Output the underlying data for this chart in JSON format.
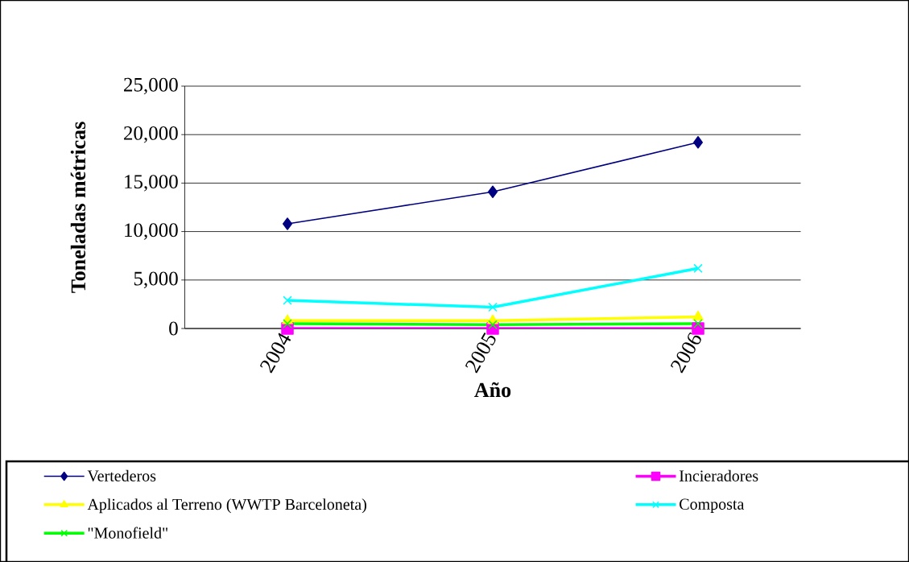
{
  "chart_data": {
    "type": "line",
    "xlabel": "Año",
    "ylabel": "Toneladas métricas",
    "categories": [
      "2004",
      "2005",
      "2006"
    ],
    "series": [
      {
        "name": "Vertederos",
        "color": "#000080",
        "marker": "diamond",
        "values": [
          10800,
          14100,
          19200
        ]
      },
      {
        "name": "Incieradores",
        "color": "#ff00ff",
        "marker": "square",
        "values": [
          0,
          0,
          0
        ]
      },
      {
        "name": "Aplicados al Terreno (WWTP Barceloneta)",
        "color": "#ffff00",
        "marker": "triangle",
        "values": [
          800,
          800,
          1200
        ]
      },
      {
        "name": "Composta",
        "color": "#00ffff",
        "marker": "cross",
        "values": [
          2900,
          2200,
          6200
        ]
      },
      {
        "name": "\"Monofield\"",
        "color": "#00ff00",
        "marker": "cross",
        "values": [
          500,
          400,
          500
        ]
      }
    ],
    "ylim": [
      0,
      25000
    ],
    "yticks": [
      0,
      {
        "value": 5000,
        "label": "5,000"
      },
      {
        "value": 10000,
        "label": "10,000"
      },
      {
        "value": 15000,
        "label": "15,000"
      },
      {
        "value": 20000,
        "label": "20,000"
      },
      {
        "value": 25000,
        "label": "25,000"
      }
    ],
    "grid": "y",
    "legend": "bottom",
    "line_style": "solid"
  }
}
